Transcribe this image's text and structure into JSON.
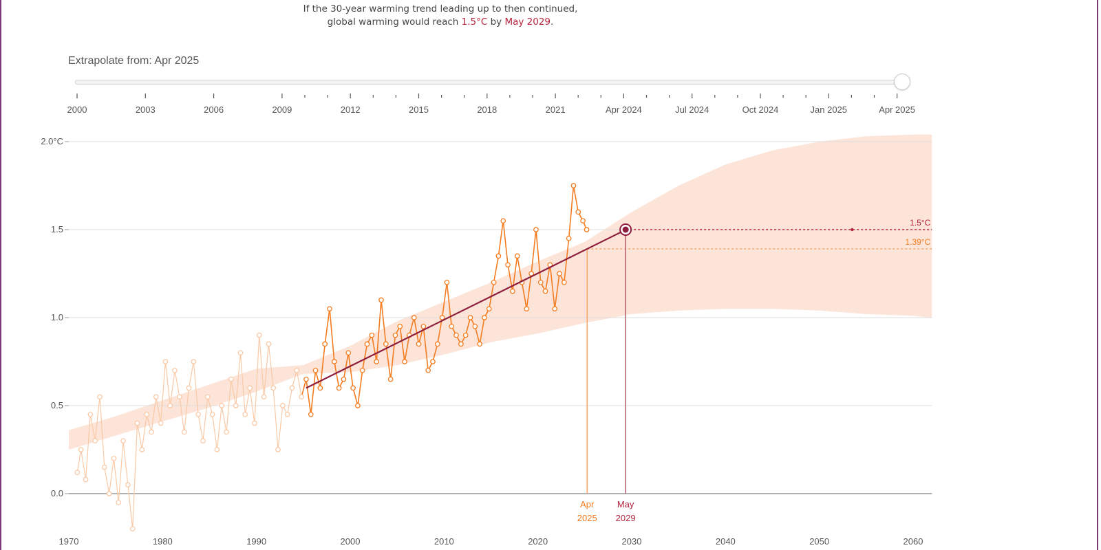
{
  "headline": {
    "line1": "If the 30-year warming trend leading up to then continued,",
    "line2_prefix": "global warming would reach ",
    "line2_value": "1.5°C",
    "line2_mid": " by ",
    "line2_date": "May 2029",
    "line2_suffix": "."
  },
  "slider": {
    "label": "Extrapolate from: Apr 2025",
    "value": "Apr 2025",
    "ticks": [
      "2000",
      "2003",
      "2006",
      "2009",
      "2012",
      "2015",
      "2018",
      "2021",
      "Apr 2024",
      "Jul 2024",
      "Oct 2024",
      "Jan 2025",
      "Apr 2025"
    ]
  },
  "colors": {
    "observed": "#f47c20",
    "observed_faded": "#f9c9a6",
    "trend": "#8c1d3c",
    "band": "#fce4d8",
    "target": "#b3233b"
  },
  "chart_data": {
    "type": "line",
    "x_range": [
      1970,
      2062
    ],
    "y_range": [
      -0.3,
      2.0
    ],
    "x_ticks": [
      1970,
      1980,
      1990,
      2000,
      2010,
      2020,
      2030,
      2040,
      2050,
      2060
    ],
    "y_ticks": [
      0.0,
      0.5,
      1.0,
      1.5,
      2.0
    ],
    "y_tick_labels": [
      "0.0",
      "0.5",
      "1.0",
      "1.5",
      "2.0°C"
    ],
    "grid": true,
    "series": [
      {
        "name": "",
        "role": "observed monthly global warming",
        "highlight_from": 1995.25,
        "x": [
          1970.9,
          1971.3,
          1971.8,
          1972.3,
          1972.8,
          1973.3,
          1973.8,
          1974.3,
          1974.8,
          1975.3,
          1975.8,
          1976.3,
          1976.8,
          1977.3,
          1977.8,
          1978.3,
          1978.8,
          1979.3,
          1979.8,
          1980.3,
          1980.8,
          1981.3,
          1981.8,
          1982.3,
          1982.8,
          1983.3,
          1983.8,
          1984.3,
          1984.8,
          1985.3,
          1985.8,
          1986.3,
          1986.8,
          1987.3,
          1987.8,
          1988.3,
          1988.8,
          1989.3,
          1989.8,
          1990.3,
          1990.8,
          1991.3,
          1991.8,
          1992.3,
          1992.8,
          1993.3,
          1993.8,
          1994.3,
          1994.8,
          1995.3,
          1995.8,
          1996.3,
          1996.8,
          1997.3,
          1997.8,
          1998.3,
          1998.8,
          1999.3,
          1999.8,
          2000.3,
          2000.8,
          2001.3,
          2001.8,
          2002.3,
          2002.8,
          2003.3,
          2003.8,
          2004.3,
          2004.8,
          2005.3,
          2005.8,
          2006.3,
          2006.8,
          2007.3,
          2007.8,
          2008.3,
          2008.8,
          2009.3,
          2009.8,
          2010.3,
          2010.8,
          2011.3,
          2011.8,
          2012.3,
          2012.8,
          2013.3,
          2013.8,
          2014.3,
          2014.8,
          2015.3,
          2015.8,
          2016.3,
          2016.8,
          2017.3,
          2017.8,
          2018.3,
          2018.8,
          2019.3,
          2019.8,
          2020.3,
          2020.8,
          2021.3,
          2021.8,
          2022.3,
          2022.8,
          2023.3,
          2023.8,
          2024.3,
          2024.8,
          2025.2
        ],
        "y": [
          0.12,
          0.25,
          0.08,
          0.45,
          0.3,
          0.55,
          0.15,
          0.0,
          0.2,
          -0.05,
          0.3,
          0.05,
          -0.2,
          0.4,
          0.25,
          0.45,
          0.35,
          0.55,
          0.4,
          0.75,
          0.5,
          0.7,
          0.55,
          0.35,
          0.6,
          0.75,
          0.45,
          0.3,
          0.55,
          0.45,
          0.25,
          0.5,
          0.35,
          0.65,
          0.5,
          0.8,
          0.45,
          0.6,
          0.4,
          0.9,
          0.55,
          0.85,
          0.6,
          0.25,
          0.5,
          0.45,
          0.6,
          0.7,
          0.55,
          0.65,
          0.45,
          0.7,
          0.6,
          0.85,
          1.05,
          0.75,
          0.6,
          0.65,
          0.8,
          0.6,
          0.5,
          0.7,
          0.85,
          0.9,
          0.75,
          1.1,
          0.85,
          0.65,
          0.9,
          0.95,
          0.75,
          0.9,
          1.0,
          0.85,
          0.95,
          0.7,
          0.75,
          0.85,
          1.0,
          1.2,
          0.95,
          0.9,
          0.85,
          0.9,
          1.0,
          0.95,
          0.85,
          1.0,
          1.05,
          1.2,
          1.35,
          1.55,
          1.3,
          1.15,
          1.35,
          1.2,
          1.05,
          1.25,
          1.5,
          1.2,
          1.15,
          1.3,
          1.05,
          1.25,
          1.2,
          1.45,
          1.75,
          1.6,
          1.55,
          1.5
        ]
      },
      {
        "name": "",
        "role": "30-year trend",
        "x": [
          1995.3,
          2029.4
        ],
        "y": [
          0.6,
          1.5
        ]
      }
    ],
    "uncertainty_band": {
      "x": [
        1970,
        1975,
        1980,
        1985,
        1990,
        1995,
        2000,
        2005,
        2010,
        2015,
        2020,
        2025,
        2030,
        2035,
        2040,
        2045,
        2050,
        2055,
        2060,
        2062
      ],
      "lower": [
        0.25,
        0.33,
        0.41,
        0.49,
        0.58,
        0.68,
        0.69,
        0.73,
        0.79,
        0.86,
        0.91,
        0.97,
        1.02,
        1.04,
        1.05,
        1.05,
        1.04,
        1.02,
        1.01,
        1.0
      ],
      "upper": [
        0.36,
        0.44,
        0.53,
        0.62,
        0.71,
        0.73,
        0.84,
        0.98,
        1.09,
        1.2,
        1.32,
        1.43,
        1.6,
        1.75,
        1.87,
        1.95,
        2.0,
        2.03,
        2.04,
        2.04
      ]
    },
    "markers": {
      "extrapolate_from": {
        "x": 2025.25,
        "y": 1.39,
        "label_line1": "Apr",
        "label_line2": "2025",
        "level_label": "1.39°C"
      },
      "target": {
        "x": 2029.35,
        "y": 1.5,
        "label_line1": "May",
        "label_line2": "2029",
        "level_label": "1.5°C"
      }
    }
  }
}
